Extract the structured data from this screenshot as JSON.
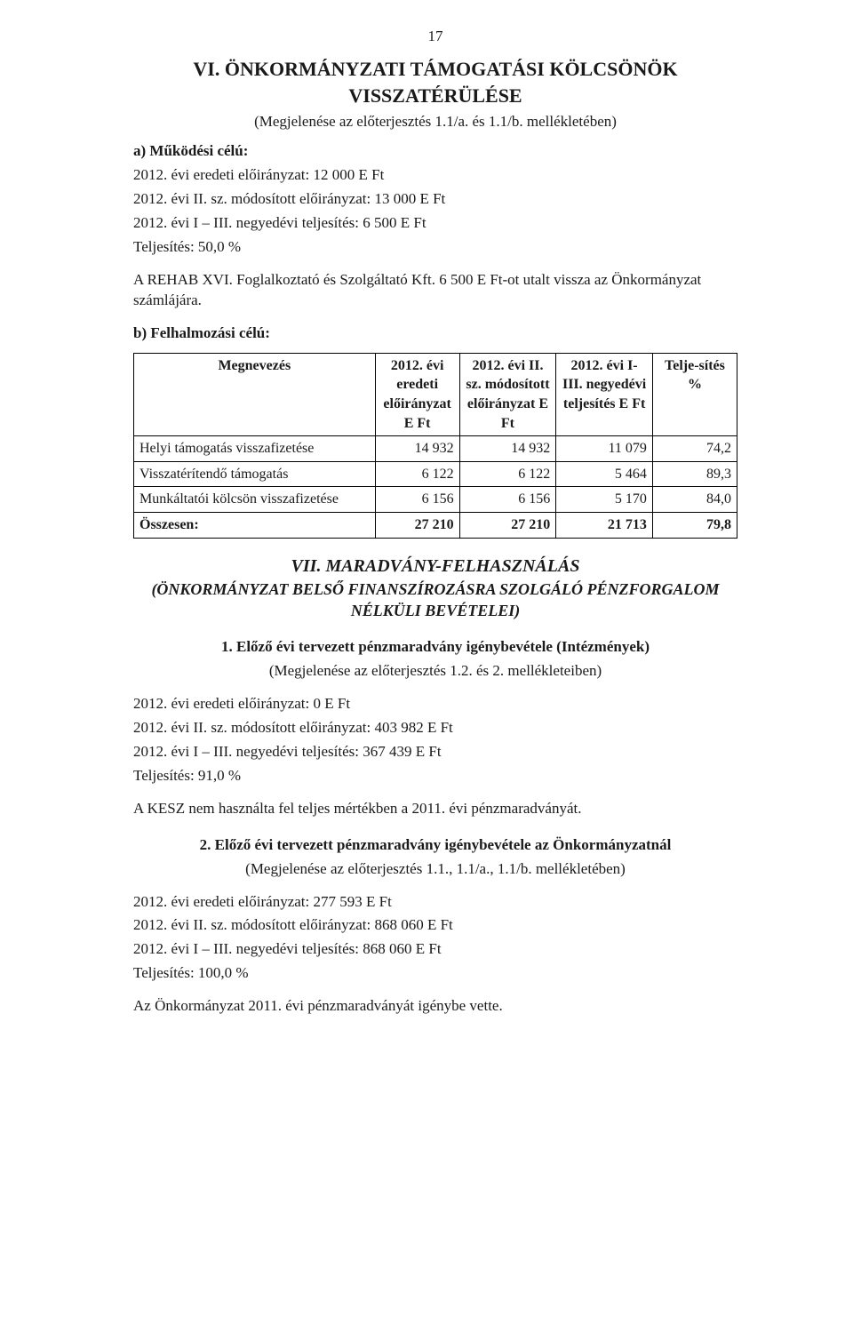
{
  "page_number": "17",
  "section6": {
    "title_line1": "VI. ÖNKORMÁNYZATI TÁMOGATÁSI KÖLCSÖNÖK",
    "title_line2": "VISSZATÉRÜLÉSE",
    "appearance": "(Megjelenése az előterjesztés 1.1/a. és 1.1/b. mellékletében)",
    "a_label": "a) Működési célú:",
    "a_lines": {
      "l1": "2012. évi eredeti előirányzat: 12 000 E Ft",
      "l2": "2012. évi II. sz. módosított előirányzat: 13 000 E Ft",
      "l3": "2012. évi I – III. negyedévi teljesítés: 6 500 E Ft",
      "l4": "Teljesítés: 50,0 %"
    },
    "a_note": "A REHAB XVI. Foglalkoztató és Szolgáltató Kft. 6 500 E Ft-ot utalt vissza az Önkormányzat számlájára.",
    "b_label": "b) Felhalmozási célú:",
    "table": {
      "columns": [
        "Megnevezés",
        "2012. évi eredeti előirányzat E Ft",
        "2012. évi II. sz. módosított előirányzat E Ft",
        "2012. évi I-III. negyedévi teljesítés E Ft",
        "Telje-sítés %"
      ],
      "col_widths_pct": [
        40,
        14,
        16,
        16,
        14
      ],
      "rows": [
        {
          "name": "Helyi támogatás visszafizetése",
          "c1": "14 932",
          "c2": "14 932",
          "c3": "11 079",
          "c4": "74,2"
        },
        {
          "name": "Visszatérítendő támogatás",
          "c1": "6 122",
          "c2": "6 122",
          "c3": "5 464",
          "c4": "89,3"
        },
        {
          "name": "Munkáltatói kölcsön visszafizetése",
          "c1": "6 156",
          "c2": "6 156",
          "c3": "5 170",
          "c4": "84,0"
        }
      ],
      "total": {
        "name": "Összesen:",
        "c1": "27 210",
        "c2": "27 210",
        "c3": "21 713",
        "c4": "79,8"
      }
    }
  },
  "section7": {
    "title": "VII. MARADVÁNY-FELHASZNÁLÁS",
    "subtitle_l1": "(ÖNKORMÁNYZAT BELSŐ FINANSZÍROZÁSRA SZOLGÁLÓ PÉNZFORGALOM",
    "subtitle_l2": "NÉLKÜLI BEVÉTELEI)",
    "item1": {
      "heading": "1. Előző évi tervezett pénzmaradvány igénybevétele (Intézmények)",
      "appearance": "(Megjelenése az előterjesztés 1.2. és 2. mellékleteiben)",
      "l1": "2012. évi eredeti előirányzat: 0 E Ft",
      "l2": "2012. évi II. sz. módosított előirányzat: 403 982 E Ft",
      "l3": "2012. évi I – III. negyedévi teljesítés: 367 439 E Ft",
      "l4": "Teljesítés: 91,0 %",
      "note": "A KESZ nem használta fel teljes mértékben a 2011. évi pénzmaradványát."
    },
    "item2": {
      "heading": "2. Előző évi tervezett pénzmaradvány igénybevétele az Önkormányzatnál",
      "appearance": "(Megjelenése az előterjesztés 1.1., 1.1/a., 1.1/b. mellékletében)",
      "l1": "2012. évi eredeti előirányzat: 277 593 E Ft",
      "l2": "2012. évi II. sz. módosított előirányzat: 868 060 E Ft",
      "l3": "2012. évi I – III. negyedévi teljesítés: 868 060 E Ft",
      "l4": "Teljesítés: 100,0 %",
      "note": "Az Önkormányzat 2011. évi pénzmaradványát igénybe vette."
    }
  }
}
